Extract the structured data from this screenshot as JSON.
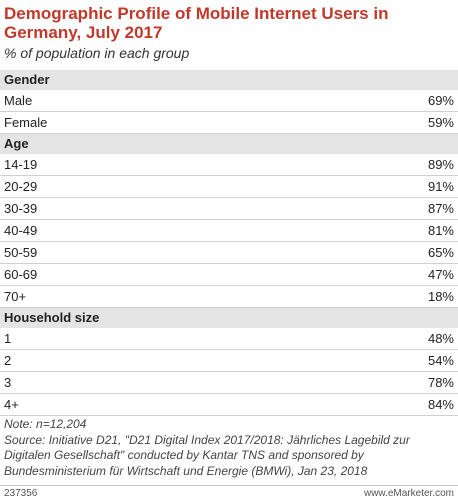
{
  "header": {
    "title": "Demographic Profile of Mobile Internet Users in Germany, July 2017",
    "subtitle": "% of population in each group"
  },
  "table": {
    "sections": [
      {
        "header": "Gender",
        "rows": [
          [
            "Male",
            "69%"
          ],
          [
            "Female",
            "59%"
          ]
        ]
      },
      {
        "header": "Age",
        "rows": [
          [
            "14-19",
            "89%"
          ],
          [
            "20-29",
            "91%"
          ],
          [
            "30-39",
            "87%"
          ],
          [
            "40-49",
            "81%"
          ],
          [
            "50-59",
            "65%"
          ],
          [
            "60-69",
            "47%"
          ],
          [
            "70+",
            "18%"
          ]
        ]
      },
      {
        "header": "Household size",
        "rows": [
          [
            "1",
            "48%"
          ],
          [
            "2",
            "54%"
          ],
          [
            "3",
            "78%"
          ],
          [
            "4+",
            "84%"
          ]
        ]
      }
    ]
  },
  "notes": {
    "note": "Note: n=12,204",
    "source": "Source: Initiative D21, \"D21 Digital Index 2017/2018: Jährliches Lagebild zur Digitalen Gesellschaft\" conducted by Kantar TNS and sponsored by Bundesministerium für Wirtschaft und Energie (BMWi), Jan 23, 2018"
  },
  "footer": {
    "id": "237356",
    "brand": "www.eMarketer.com"
  }
}
